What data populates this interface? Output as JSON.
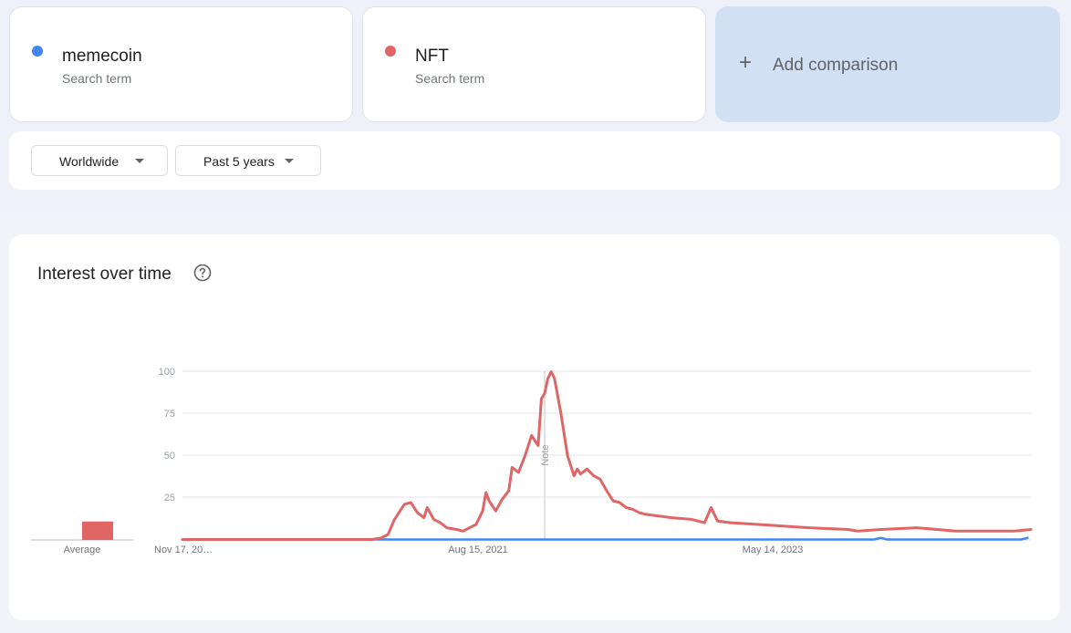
{
  "terms": [
    {
      "name": "memecoin",
      "subtitle": "Search term",
      "color": "#4285f4"
    },
    {
      "name": "NFT",
      "subtitle": "Search term",
      "color": "#e06666"
    }
  ],
  "add_comparison": {
    "label": "Add comparison",
    "icon": "plus-icon"
  },
  "filters": {
    "region": "Worldwide",
    "period": "Past 5 years"
  },
  "section": {
    "title": "Interest over time",
    "help_icon": "help-circle-icon"
  },
  "chart_data": {
    "type": "line",
    "title": "",
    "xlabel": "",
    "ylabel": "",
    "ylim": [
      0,
      100
    ],
    "yticks": [
      25,
      50,
      75,
      100
    ],
    "x_labels": [
      "Nov 17, 20…",
      "Aug 15, 2021",
      "May 14, 2023"
    ],
    "average_label": "Average",
    "averages": {
      "memecoin": 0,
      "NFT": 11
    },
    "note_label": "Note",
    "note_date": "2022-01-02",
    "grid": true,
    "series": [
      {
        "name": "memecoin",
        "color": "#4285f4",
        "points": [
          [
            "2019-11-17",
            0
          ],
          [
            "2023-12-10",
            0
          ],
          [
            "2023-12-24",
            1
          ],
          [
            "2024-01-07",
            0
          ],
          [
            "2024-10-20",
            0
          ],
          [
            "2024-11-03",
            1
          ]
        ]
      },
      {
        "name": "NFT",
        "color": "#e06666",
        "points": [
          [
            "2019-11-17",
            0
          ],
          [
            "2020-06-07",
            0
          ],
          [
            "2020-12-27",
            0
          ],
          [
            "2021-01-17",
            1
          ],
          [
            "2021-01-31",
            3
          ],
          [
            "2021-02-14",
            12
          ],
          [
            "2021-03-07",
            21
          ],
          [
            "2021-03-21",
            22
          ],
          [
            "2021-04-04",
            16
          ],
          [
            "2021-04-18",
            13
          ],
          [
            "2021-04-25",
            19
          ],
          [
            "2021-05-09",
            12
          ],
          [
            "2021-05-23",
            10
          ],
          [
            "2021-06-06",
            7
          ],
          [
            "2021-06-27",
            6
          ],
          [
            "2021-07-11",
            5
          ],
          [
            "2021-07-25",
            7
          ],
          [
            "2021-08-08",
            9
          ],
          [
            "2021-08-22",
            17
          ],
          [
            "2021-08-29",
            28
          ],
          [
            "2021-09-05",
            23
          ],
          [
            "2021-09-19",
            17
          ],
          [
            "2021-10-03",
            24
          ],
          [
            "2021-10-17",
            29
          ],
          [
            "2021-10-24",
            43
          ],
          [
            "2021-11-07",
            40
          ],
          [
            "2021-11-21",
            50
          ],
          [
            "2021-12-05",
            62
          ],
          [
            "2021-12-19",
            56
          ],
          [
            "2021-12-26",
            84
          ],
          [
            "2022-01-02",
            87
          ],
          [
            "2022-01-09",
            96
          ],
          [
            "2022-01-16",
            100
          ],
          [
            "2022-01-23",
            96
          ],
          [
            "2022-02-06",
            75
          ],
          [
            "2022-02-20",
            50
          ],
          [
            "2022-03-06",
            38
          ],
          [
            "2022-03-13",
            42
          ],
          [
            "2022-03-20",
            39
          ],
          [
            "2022-04-03",
            42
          ],
          [
            "2022-04-17",
            38
          ],
          [
            "2022-05-01",
            36
          ],
          [
            "2022-05-15",
            29
          ],
          [
            "2022-05-29",
            23
          ],
          [
            "2022-06-12",
            22
          ],
          [
            "2022-06-26",
            19
          ],
          [
            "2022-07-10",
            18
          ],
          [
            "2022-07-24",
            16
          ],
          [
            "2022-08-07",
            15
          ],
          [
            "2022-09-04",
            14
          ],
          [
            "2022-10-02",
            13
          ],
          [
            "2022-11-13",
            12
          ],
          [
            "2022-12-11",
            10
          ],
          [
            "2022-12-25",
            19
          ],
          [
            "2023-01-08",
            11
          ],
          [
            "2023-02-05",
            10
          ],
          [
            "2023-04-02",
            9
          ],
          [
            "2023-05-28",
            8
          ],
          [
            "2023-07-23",
            7
          ],
          [
            "2023-10-15",
            6
          ],
          [
            "2023-11-05",
            5
          ],
          [
            "2023-12-24",
            6
          ],
          [
            "2024-03-10",
            7
          ],
          [
            "2024-06-02",
            5
          ],
          [
            "2024-10-06",
            5
          ],
          [
            "2024-11-10",
            6
          ]
        ]
      }
    ]
  }
}
